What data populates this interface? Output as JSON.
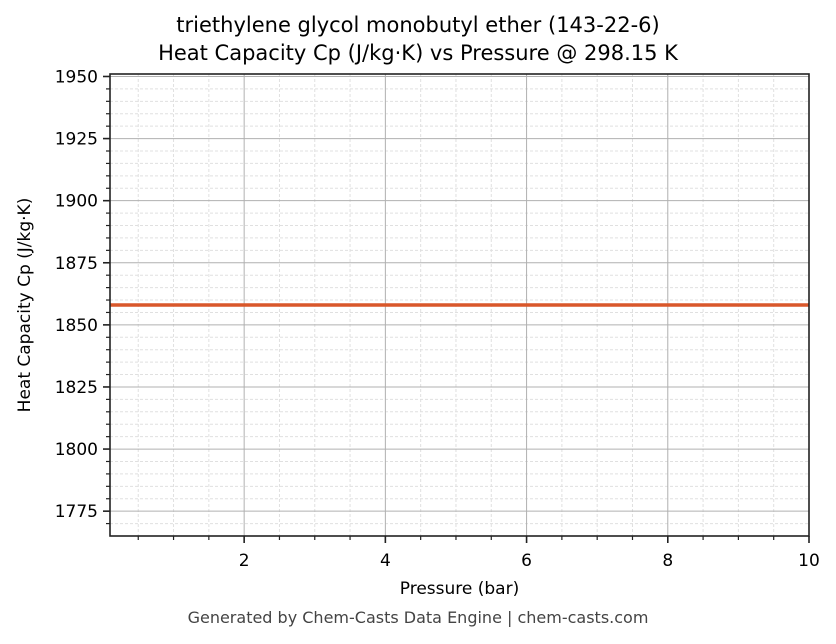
{
  "title_line1": "triethylene glycol monobutyl ether (143-22-6)",
  "title_line2": "Heat Capacity Cp (J/kg·K) vs Pressure @ 298.15 K",
  "footer": "Generated by Chem-Casts Data Engine | chem-casts.com",
  "colors": {
    "line": "#d9572a",
    "grid_major": "#b0b0b0",
    "grid_minor": "#e0e0e0",
    "axis": "#222222"
  },
  "chart_data": {
    "type": "line",
    "title": "triethylene glycol monobutyl ether (143-22-6) — Heat Capacity Cp (J/kg·K) vs Pressure @ 298.15 K",
    "xlabel": "Pressure (bar)",
    "ylabel": "Heat Capacity Cp (J/kg·K)",
    "xlim": [
      0.1,
      10
    ],
    "ylim": [
      1765,
      1951
    ],
    "xticks": [
      2,
      4,
      6,
      8,
      10
    ],
    "yticks": [
      1775,
      1800,
      1825,
      1850,
      1875,
      1900,
      1925,
      1950
    ],
    "grid": true,
    "legend": null,
    "series": [
      {
        "name": "Cp",
        "x": [
          0.1,
          1,
          2,
          3,
          4,
          5,
          6,
          7,
          8,
          9,
          10
        ],
        "values": [
          1858,
          1858,
          1858,
          1858,
          1858,
          1858,
          1858,
          1858,
          1858,
          1858,
          1858
        ]
      }
    ]
  }
}
